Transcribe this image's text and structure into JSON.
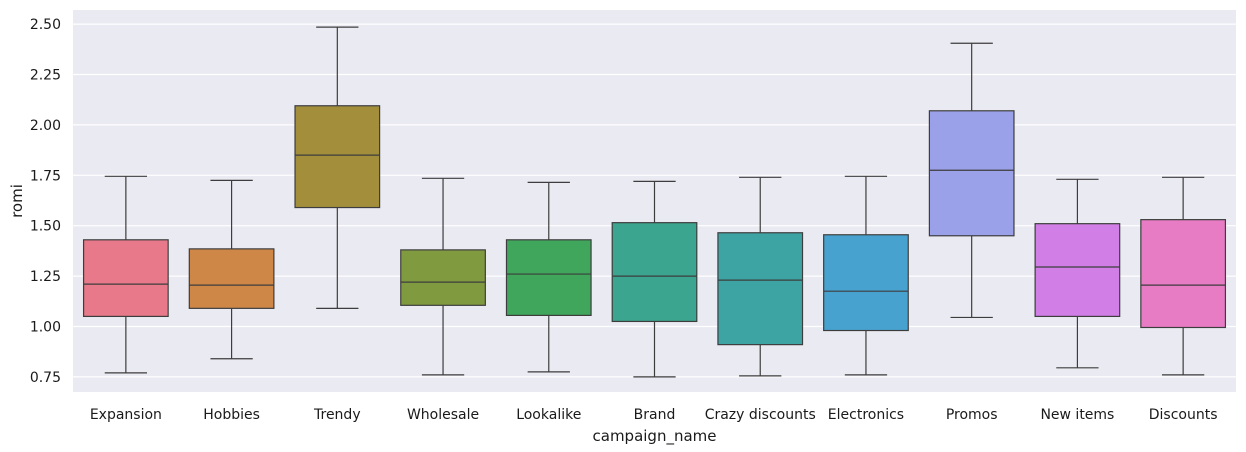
{
  "chart_data": {
    "type": "box",
    "xlabel": "campaign_name",
    "ylabel": "romi",
    "ylim": [
      0.675,
      2.57
    ],
    "yticks": [
      "0.75",
      "1.00",
      "1.25",
      "1.50",
      "1.75",
      "2.00",
      "2.25",
      "2.50"
    ],
    "grid": true,
    "categories": [
      "Expansion",
      "Hobbies",
      "Trendy",
      "Wholesale",
      "Lookalike",
      "Brand",
      "Crazy discounts",
      "Electronics",
      "Promos",
      "New items",
      "Discounts"
    ],
    "boxes": [
      {
        "category": "Expansion",
        "whisker_low": 0.77,
        "q1": 1.05,
        "median": 1.21,
        "q3": 1.43,
        "whisker_high": 1.745,
        "color": "#e8798a"
      },
      {
        "category": "Hobbies",
        "whisker_low": 0.84,
        "q1": 1.09,
        "median": 1.205,
        "q3": 1.385,
        "whisker_high": 1.725,
        "color": "#cf8748"
      },
      {
        "category": "Trendy",
        "whisker_low": 1.09,
        "q1": 1.59,
        "median": 1.85,
        "q3": 2.095,
        "whisker_high": 2.485,
        "color": "#a38e3c"
      },
      {
        "category": "Wholesale",
        "whisker_low": 0.76,
        "q1": 1.105,
        "median": 1.22,
        "q3": 1.38,
        "whisker_high": 1.735,
        "color": "#809a3f"
      },
      {
        "category": "Lookalike",
        "whisker_low": 0.775,
        "q1": 1.055,
        "median": 1.26,
        "q3": 1.43,
        "whisker_high": 1.715,
        "color": "#3fa65c"
      },
      {
        "category": "Brand",
        "whisker_low": 0.75,
        "q1": 1.025,
        "median": 1.25,
        "q3": 1.515,
        "whisker_high": 1.72,
        "color": "#3ca58f"
      },
      {
        "category": "Crazy discounts",
        "whisker_low": 0.755,
        "q1": 0.91,
        "median": 1.23,
        "q3": 1.465,
        "whisker_high": 1.74,
        "color": "#3ea4a3"
      },
      {
        "category": "Electronics",
        "whisker_low": 0.76,
        "q1": 0.98,
        "median": 1.175,
        "q3": 1.455,
        "whisker_high": 1.745,
        "color": "#47a2cf"
      },
      {
        "category": "Promos",
        "whisker_low": 1.045,
        "q1": 1.45,
        "median": 1.775,
        "q3": 2.07,
        "whisker_high": 2.405,
        "color": "#9ba1e9"
      },
      {
        "category": "New items",
        "whisker_low": 0.795,
        "q1": 1.05,
        "median": 1.295,
        "q3": 1.51,
        "whisker_high": 1.73,
        "color": "#d17ee6"
      },
      {
        "category": "Discounts",
        "whisker_low": 0.76,
        "q1": 0.995,
        "median": 1.205,
        "q3": 1.53,
        "whisker_high": 1.74,
        "color": "#e77bc4"
      }
    ],
    "colors": {
      "plot_background": "#eaeaf2",
      "grid": "#ffffff",
      "line": "#3d3d3d"
    }
  }
}
